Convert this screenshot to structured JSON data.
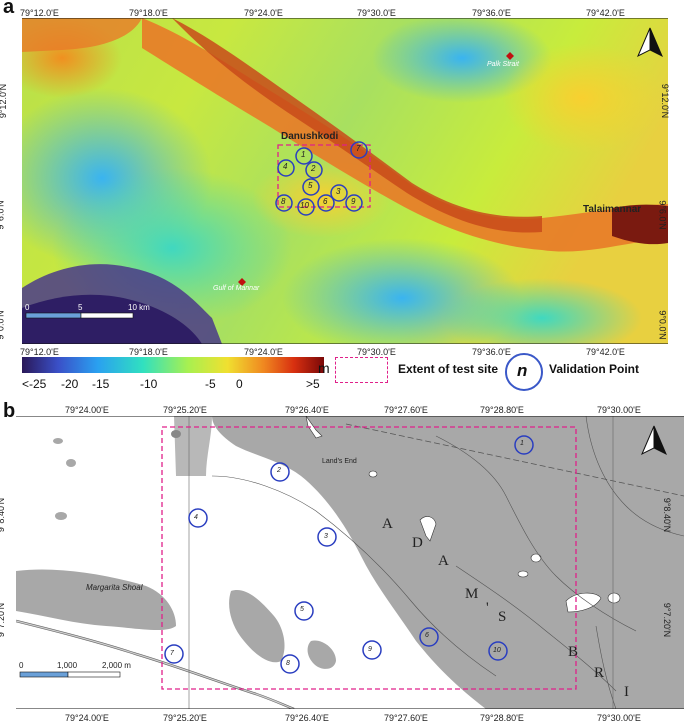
{
  "panel_a": {
    "letter": "a",
    "lon_labels": [
      "79°12.0'E",
      "79°18.0'E",
      "79°24.0'E",
      "79°30.0'E",
      "79°36.0'E",
      "79°42.0'E"
    ],
    "lat_labels": [
      "9°12.0'N",
      "9°6.0'N",
      "9°0.0'N"
    ],
    "places": {
      "danushkodi": "Danushkodi",
      "palk_strait": "Palk Strait",
      "talaimannar": "Talaimannar",
      "gulf_of_mannar": "Gulf of Mannar"
    },
    "scalebar": {
      "zero": "0",
      "mid": "5",
      "end": "10 km"
    },
    "points": [
      "1",
      "2",
      "3",
      "4",
      "5",
      "6",
      "7",
      "8",
      "9",
      "10"
    ]
  },
  "legend": {
    "ticks": [
      "<-25",
      "-20",
      "-15",
      "-10",
      "-5",
      "0",
      ">5"
    ],
    "unit": "m",
    "extent_label": "Extent of test site",
    "point_symbol": "n",
    "point_label": "Validation Point",
    "colors": {
      "deep": "#2b1a5c",
      "shallow": "#7a0a0a",
      "extent": "#e0208a",
      "point": "#3a58c8"
    }
  },
  "panel_b": {
    "letter": "b",
    "lon_labels": [
      "79°24.00'E",
      "79°25.20'E",
      "79°26.40'E",
      "79°27.60'E",
      "79°28.80'E",
      "79°30.00'E"
    ],
    "lat_labels": [
      "9°8.40'N",
      "9°7.20'N"
    ],
    "places": {
      "margarita": "Margarita Shoal",
      "lands_end": "Land's End",
      "adams_bridge": [
        "A",
        "D",
        "A",
        "M",
        "'",
        "S",
        "B",
        "R",
        "I"
      ]
    },
    "scalebar": {
      "zero": "0",
      "mid": "1,000",
      "end": "2,000 m"
    },
    "points": [
      "1",
      "2",
      "3",
      "4",
      "5",
      "6",
      "7",
      "8",
      "9",
      "10"
    ]
  }
}
